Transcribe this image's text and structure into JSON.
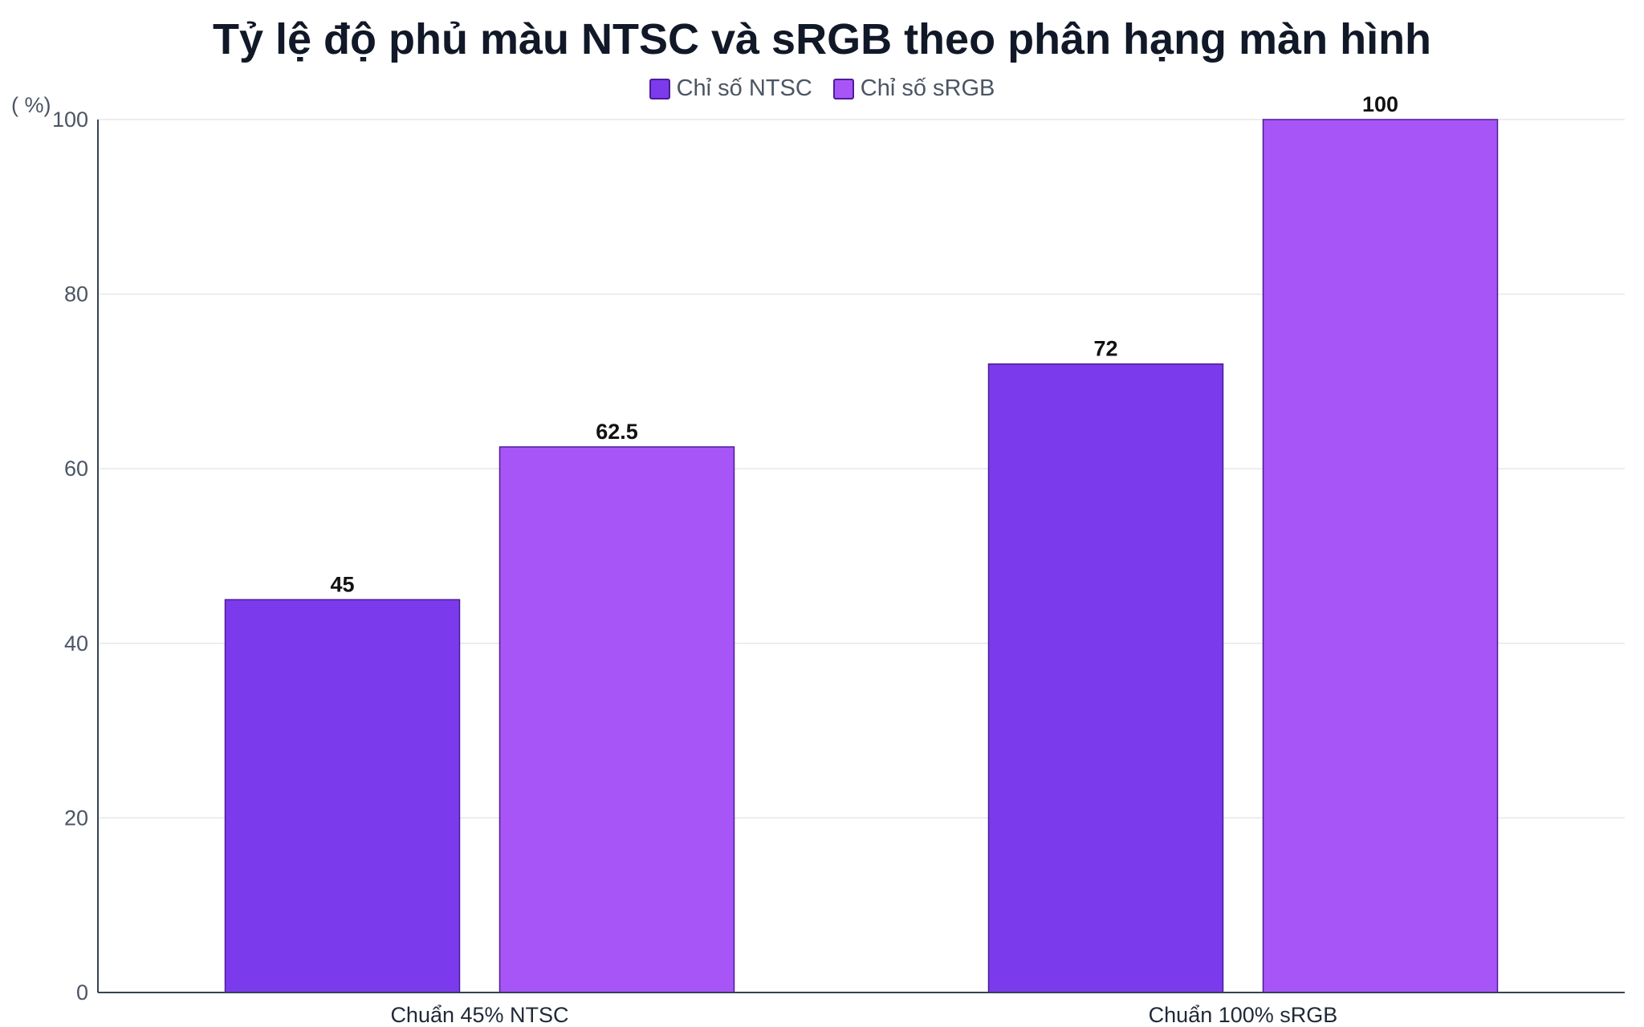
{
  "chart_data": {
    "type": "bar",
    "title": "Tỷ lệ độ phủ màu NTSC và sRGB theo phân hạng màn hình",
    "ylabel": "( %)",
    "xlabel": "",
    "ylim": [
      0,
      100
    ],
    "yticks": [
      0,
      20,
      40,
      60,
      80,
      100
    ],
    "grid": true,
    "legend_position": "top-center",
    "categories": [
      "Chuẩn 45% NTSC",
      "Chuẩn 100% sRGB"
    ],
    "series": [
      {
        "name": "Chỉ số NTSC",
        "color": "#7c3aed",
        "values": [
          45,
          72
        ]
      },
      {
        "name": "Chỉ số sRGB",
        "color": "#a855f7",
        "values": [
          62.5,
          100
        ]
      }
    ]
  }
}
